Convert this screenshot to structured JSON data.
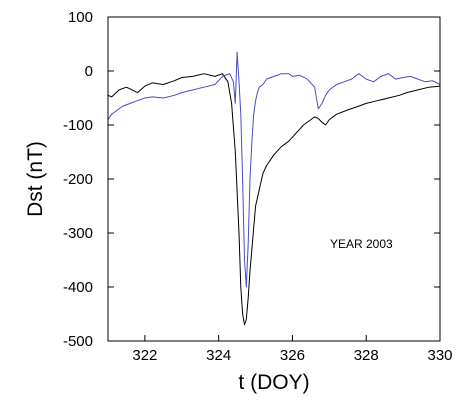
{
  "chart_data": {
    "type": "line",
    "xlabel": "t (DOY)",
    "ylabel": "Dst (nT)",
    "xlim": [
      321,
      330
    ],
    "ylim": [
      -500,
      100
    ],
    "x_ticks": [
      322,
      324,
      326,
      328,
      330
    ],
    "y_ticks": [
      100,
      0,
      -100,
      -200,
      -300,
      -400,
      -500
    ],
    "annotation": "YEAR 2003",
    "grid": false,
    "series": [
      {
        "color": "#000000",
        "x": [
          321.0,
          321.1,
          321.3,
          321.5,
          321.8,
          322.0,
          322.2,
          322.5,
          322.8,
          323.0,
          323.3,
          323.6,
          323.9,
          324.1,
          324.25,
          324.35,
          324.45,
          324.55,
          324.6,
          324.65,
          324.7,
          324.75,
          324.8,
          324.85,
          324.9,
          324.95,
          325.0,
          325.1,
          325.2,
          325.3,
          325.5,
          325.7,
          325.9,
          326.1,
          326.3,
          326.5,
          326.6,
          326.7,
          326.8,
          326.9,
          327.0,
          327.2,
          327.5,
          327.8,
          328.0,
          328.3,
          328.6,
          328.9,
          329.1,
          329.4,
          329.7,
          330.0
        ],
        "y": [
          -45,
          -48,
          -35,
          -30,
          -40,
          -28,
          -22,
          -25,
          -18,
          -12,
          -10,
          -5,
          -10,
          -5,
          -20,
          -60,
          -150,
          -300,
          -400,
          -450,
          -470,
          -460,
          -420,
          -370,
          -330,
          -290,
          -250,
          -220,
          -190,
          -175,
          -155,
          -140,
          -130,
          -115,
          -100,
          -90,
          -85,
          -88,
          -95,
          -100,
          -90,
          -80,
          -72,
          -65,
          -60,
          -55,
          -50,
          -45,
          -40,
          -35,
          -30,
          -28
        ]
      },
      {
        "color": "#4a4ac8",
        "x": [
          321.0,
          321.1,
          321.2,
          321.4,
          321.6,
          321.8,
          322.0,
          322.2,
          322.5,
          322.8,
          323.0,
          323.3,
          323.6,
          323.9,
          324.1,
          324.3,
          324.4,
          324.45,
          324.5,
          324.55,
          324.6,
          324.65,
          324.7,
          324.75,
          324.8,
          324.85,
          324.9,
          324.95,
          325.0,
          325.05,
          325.1,
          325.2,
          325.3,
          325.5,
          325.7,
          325.9,
          326.0,
          326.2,
          326.4,
          326.6,
          326.7,
          326.8,
          326.9,
          327.0,
          327.2,
          327.4,
          327.6,
          327.8,
          328.0,
          328.2,
          328.4,
          328.6,
          328.8,
          329.0,
          329.2,
          329.4,
          329.6,
          329.8,
          330.0
        ],
        "y": [
          -90,
          -80,
          -75,
          -65,
          -60,
          -55,
          -50,
          -48,
          -50,
          -45,
          -40,
          -35,
          -30,
          -25,
          -10,
          -5,
          -20,
          -60,
          35,
          -20,
          -80,
          -200,
          -350,
          -400,
          -320,
          -200,
          -130,
          -80,
          -55,
          -40,
          -30,
          -25,
          -15,
          -10,
          -5,
          -5,
          -10,
          -8,
          -15,
          -30,
          -70,
          -60,
          -45,
          -35,
          -25,
          -20,
          -15,
          -5,
          -15,
          -20,
          -10,
          -5,
          -15,
          -12,
          -10,
          -15,
          -20,
          -18,
          -25
        ]
      }
    ]
  }
}
